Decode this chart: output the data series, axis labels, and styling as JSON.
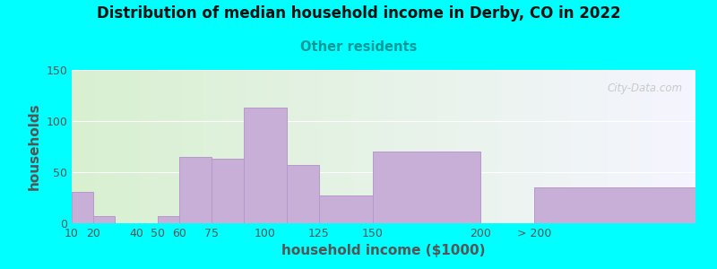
{
  "title": "Distribution of median household income in Derby, CO in 2022",
  "subtitle": "Other residents",
  "xlabel": "household income ($1000)",
  "ylabel": "households",
  "background_color": "#00FFFF",
  "bar_color": "#c8afd8",
  "bar_edge_color": "#b898cc",
  "title_color": "#111111",
  "subtitle_color": "#009999",
  "axis_label_color": "#555555",
  "tick_label_color": "#555555",
  "watermark": "City-Data.com",
  "ylim": [
    0,
    150
  ],
  "yticks": [
    0,
    50,
    100,
    150
  ],
  "bar_lefts": [
    10,
    20,
    40,
    50,
    60,
    75,
    90,
    110,
    125,
    150,
    225
  ],
  "bar_widths": [
    10,
    10,
    10,
    10,
    15,
    15,
    20,
    15,
    25,
    50,
    75
  ],
  "bar_heights": [
    31,
    7,
    0,
    7,
    65,
    63,
    113,
    57,
    27,
    70,
    35
  ],
  "xtick_positions": [
    10,
    20,
    40,
    50,
    60,
    75,
    100,
    125,
    150,
    200,
    225
  ],
  "xtick_labels": [
    "10",
    "20",
    "40",
    "50",
    "60",
    "75",
    "100",
    "125",
    "150",
    "200",
    "> 200"
  ]
}
